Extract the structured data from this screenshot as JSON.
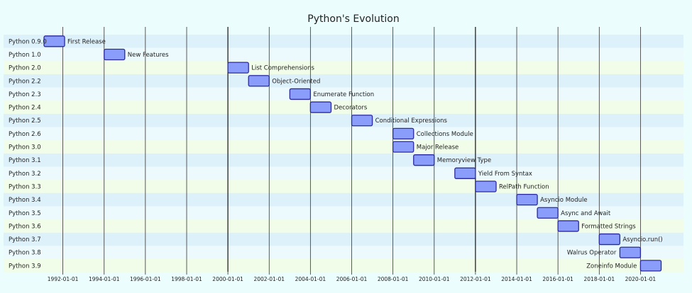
{
  "chart_data": {
    "type": "gantt",
    "title": "Python's Evolution",
    "x_axis": {
      "type": "date",
      "range": [
        "1991-02-01",
        "2021-02-01"
      ],
      "ticks": [
        "1992-01-01",
        "1994-01-01",
        "1996-01-01",
        "1998-01-01",
        "2000-01-01",
        "2002-01-01",
        "2004-01-01",
        "2006-01-01",
        "2008-01-01",
        "2010-01-01",
        "2012-01-01",
        "2014-01-01",
        "2016-01-01",
        "2018-01-01",
        "2020-01-01"
      ],
      "grid": true
    },
    "bar_color": "#8a9dfb",
    "bar_border": "#2b2a9b",
    "row_colors": [
      "#ddf1fb",
      "#ecfafd",
      "#f1fde8"
    ],
    "tasks": [
      {
        "row": "Python 0.9.0",
        "task": "First Release",
        "start": "1991-02-01",
        "end": "1992-02-01"
      },
      {
        "row": "Python 1.0",
        "task": "New Features",
        "start": "1994-01-01",
        "end": "1995-01-01"
      },
      {
        "row": "Python 2.0",
        "task": "List Comprehensions",
        "start": "2000-01-01",
        "end": "2001-01-01"
      },
      {
        "row": "Python 2.2",
        "task": "Object-Oriented",
        "start": "2001-01-01",
        "end": "2002-01-01"
      },
      {
        "row": "Python 2.3",
        "task": "Enumerate Function",
        "start": "2003-01-01",
        "end": "2004-01-01"
      },
      {
        "row": "Python 2.4",
        "task": "Decorators",
        "start": "2004-01-01",
        "end": "2005-01-01"
      },
      {
        "row": "Python 2.5",
        "task": "Conditional Expressions",
        "start": "2006-01-01",
        "end": "2007-01-01"
      },
      {
        "row": "Python 2.6",
        "task": "Collections Module",
        "start": "2008-01-01",
        "end": "2009-01-01"
      },
      {
        "row": "Python 3.0",
        "task": "Major Release",
        "start": "2008-01-01",
        "end": "2009-01-01"
      },
      {
        "row": "Python 3.1",
        "task": "Memoryview Type",
        "start": "2009-01-01",
        "end": "2010-01-01"
      },
      {
        "row": "Python 3.2",
        "task": "Yield From Syntax",
        "start": "2011-01-01",
        "end": "2012-01-01"
      },
      {
        "row": "Python 3.3",
        "task": "RelPath Function",
        "start": "2012-01-01",
        "end": "2013-01-01"
      },
      {
        "row": "Python 3.4",
        "task": "Asyncio Module",
        "start": "2014-01-01",
        "end": "2015-01-01"
      },
      {
        "row": "Python 3.5",
        "task": "Async and Await",
        "start": "2015-01-01",
        "end": "2016-01-01"
      },
      {
        "row": "Python 3.6",
        "task": "Formatted Strings",
        "start": "2016-01-01",
        "end": "2017-01-01"
      },
      {
        "row": "Python 3.7",
        "task": "Asyncio.run()",
        "start": "2018-01-01",
        "end": "2019-01-01"
      },
      {
        "row": "Python 3.8",
        "task": "Walrus Operator",
        "start": "2019-01-01",
        "end": "2020-01-01"
      },
      {
        "row": "Python 3.9",
        "task": "Zoneinfo Module",
        "start": "2020-01-01",
        "end": "2021-01-01"
      }
    ]
  }
}
